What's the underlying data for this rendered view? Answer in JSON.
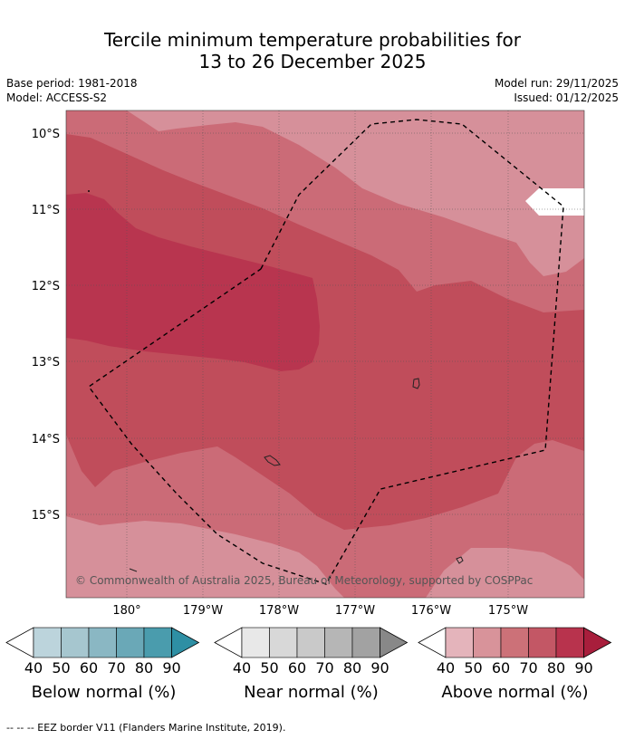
{
  "title_line1": "Tercile minimum temperature probabilities for",
  "title_line2": "13 to 26 December 2025",
  "base_period": "Base period: 1981-2018",
  "model": "Model: ACCESS-S2",
  "model_run": "Model run: 29/11/2025",
  "issued": "Issued: 01/12/2025",
  "lat_labels": [
    "10°S",
    "11°S",
    "12°S",
    "13°S",
    "14°S",
    "15°S"
  ],
  "lon_labels": [
    "180°",
    "179°W",
    "178°W",
    "177°W",
    "176°W",
    "175°W"
  ],
  "copyright": "© Commonwealth of Australia 2025, Bureau of Meteorology, supported by COSPPac",
  "colorbars": [
    {
      "name": "below",
      "title": "Below normal (%)",
      "ticks": [
        "40",
        "50",
        "60",
        "70",
        "80",
        "90"
      ],
      "colors": [
        "#bcd4dc",
        "#a6c6cf",
        "#8ab7c3",
        "#6aa8b7",
        "#4a9cad",
        "#2e8fa4"
      ]
    },
    {
      "name": "near",
      "title": "Near normal (%)",
      "ticks": [
        "40",
        "50",
        "60",
        "70",
        "80",
        "90"
      ],
      "colors": [
        "#e8e8e8",
        "#d8d8d8",
        "#c9c9c9",
        "#b6b6b6",
        "#a2a2a2",
        "#888888"
      ]
    },
    {
      "name": "above",
      "title": "Above normal (%)",
      "ticks": [
        "40",
        "50",
        "60",
        "70",
        "80",
        "90"
      ],
      "colors": [
        "#e4b4bb",
        "#d8939a",
        "#cc7178",
        "#c35765",
        "#b8334d",
        "#a81e3c"
      ]
    }
  ],
  "footnote": "--  --  -- EEZ border V11 (Flanders Marine Institute, 2019).",
  "field_colors": {
    "c50": "#d6909a",
    "c60": "#cb6b77",
    "c70": "#c04d5b",
    "c80": "#b8354f"
  }
}
